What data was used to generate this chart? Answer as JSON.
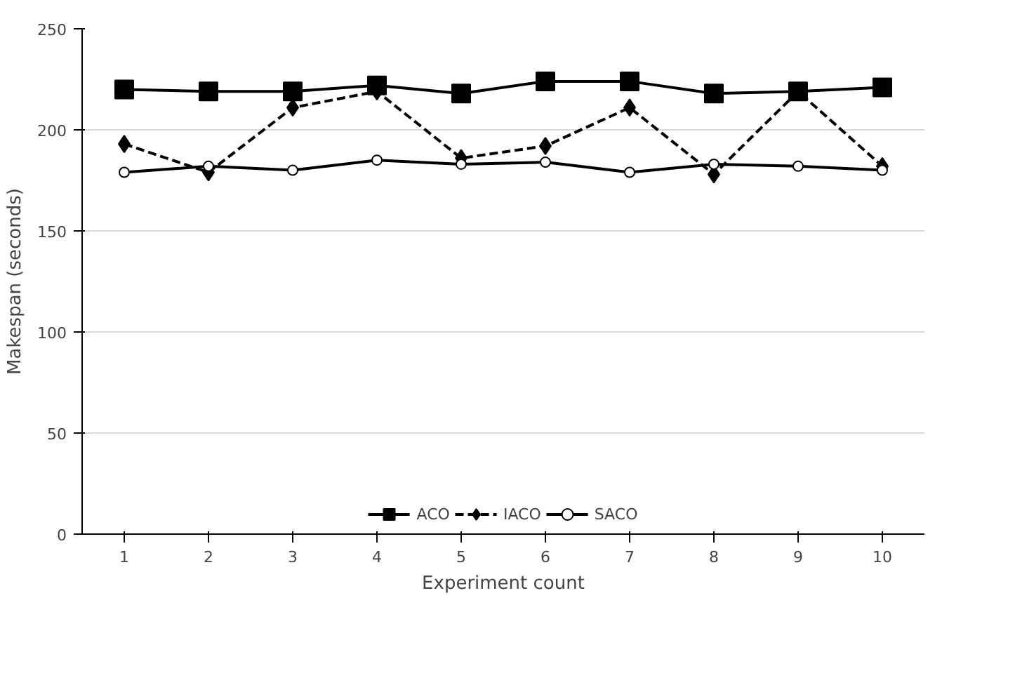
{
  "chart_data": {
    "type": "line",
    "xlabel": "Experiment count",
    "ylabel": "Makespan (seconds)",
    "categories": [
      "1",
      "2",
      "3",
      "4",
      "5",
      "6",
      "7",
      "8",
      "9",
      "10"
    ],
    "ylim": [
      0,
      250
    ],
    "yticks": [
      0,
      50,
      100,
      150,
      200,
      250
    ],
    "grid": "y",
    "legend": "bottom",
    "series": [
      {
        "name": "ACO",
        "color": "#000000",
        "marker": "square",
        "line_style": "solid",
        "values": [
          220,
          219,
          219,
          222,
          218,
          224,
          224,
          218,
          219,
          221
        ]
      },
      {
        "name": "IACO",
        "color": "#000000",
        "marker": "diamond",
        "line_style": "dashed",
        "values": [
          193,
          179,
          211,
          219,
          186,
          192,
          211,
          178,
          219,
          182
        ]
      },
      {
        "name": "SACO",
        "color": "#000000",
        "marker": "circle",
        "line_style": "solid",
        "values": [
          179,
          182,
          180,
          185,
          183,
          184,
          179,
          183,
          182,
          180
        ]
      }
    ]
  }
}
